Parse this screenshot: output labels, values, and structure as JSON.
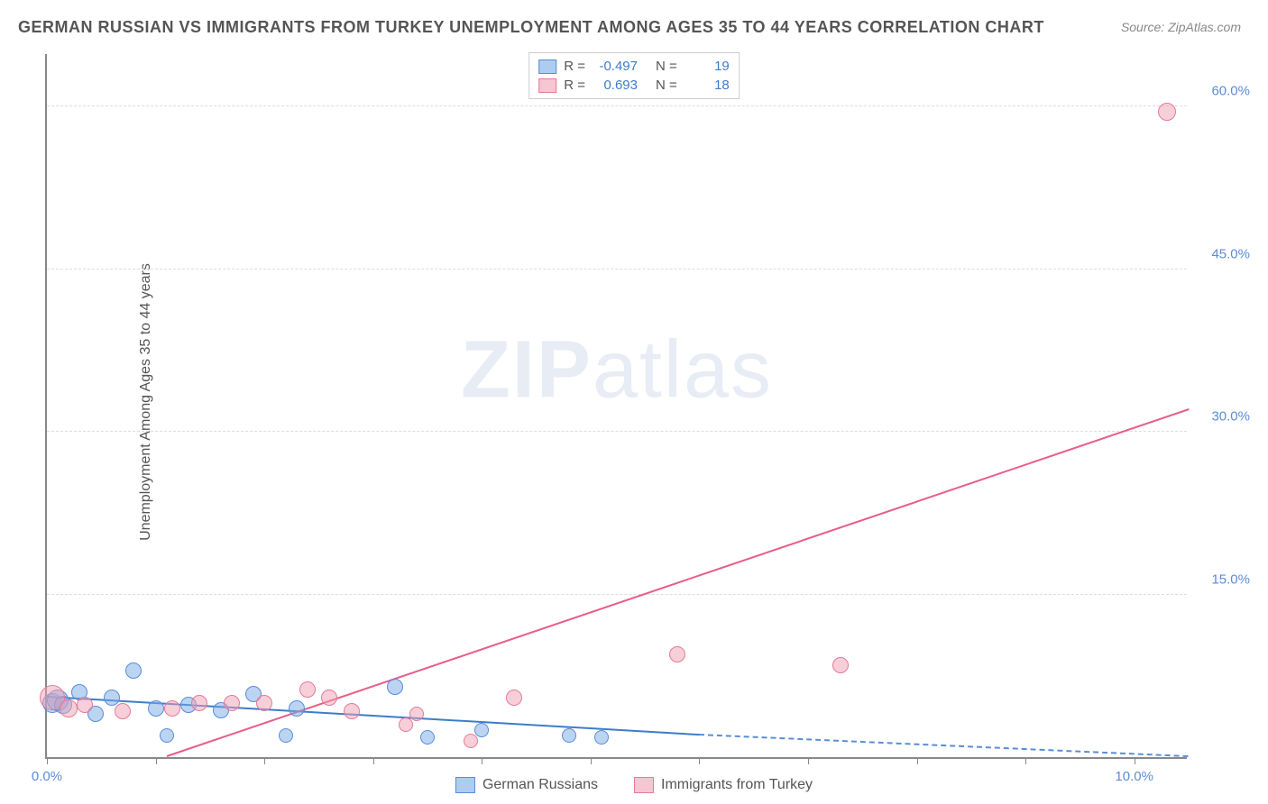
{
  "title": "GERMAN RUSSIAN VS IMMIGRANTS FROM TURKEY UNEMPLOYMENT AMONG AGES 35 TO 44 YEARS CORRELATION CHART",
  "source": "Source: ZipAtlas.com",
  "ylabel": "Unemployment Among Ages 35 to 44 years",
  "watermark_a": "ZIP",
  "watermark_b": "atlas",
  "chart": {
    "type": "scatter",
    "xlim": [
      0,
      10.5
    ],
    "ylim": [
      0,
      65
    ],
    "xticks": [
      0.0,
      1.0,
      2.0,
      3.0,
      4.0,
      5.0,
      6.0,
      7.0,
      8.0,
      9.0,
      10.0
    ],
    "xtick_labels": [
      "0.0%",
      "",
      "",
      "",
      "",
      "",
      "",
      "",
      "",
      "",
      "10.0%"
    ],
    "yticks": [
      15.0,
      30.0,
      45.0,
      60.0
    ],
    "ytick_labels": [
      "15.0%",
      "30.0%",
      "45.0%",
      "60.0%"
    ],
    "background_color": "#ffffff",
    "grid_color": "#dddddd",
    "axis_color": "#888888",
    "label_color": "#5b8dd6",
    "series": [
      {
        "name": "German Russians",
        "color_fill": "rgba(120,170,230,0.5)",
        "color_stroke": "#5b8dd6",
        "marker_radius_base": 9,
        "points": [
          {
            "x": 0.05,
            "y": 5.0,
            "r": 11
          },
          {
            "x": 0.1,
            "y": 5.2,
            "r": 12
          },
          {
            "x": 0.15,
            "y": 4.8,
            "r": 10
          },
          {
            "x": 0.3,
            "y": 6.0,
            "r": 9
          },
          {
            "x": 0.45,
            "y": 4.0,
            "r": 9
          },
          {
            "x": 0.6,
            "y": 5.5,
            "r": 9
          },
          {
            "x": 0.8,
            "y": 8.0,
            "r": 9
          },
          {
            "x": 1.0,
            "y": 4.5,
            "r": 9
          },
          {
            "x": 1.1,
            "y": 2.0,
            "r": 8
          },
          {
            "x": 1.3,
            "y": 4.8,
            "r": 9
          },
          {
            "x": 1.6,
            "y": 4.3,
            "r": 9
          },
          {
            "x": 1.9,
            "y": 5.8,
            "r": 9
          },
          {
            "x": 2.2,
            "y": 2.0,
            "r": 8
          },
          {
            "x": 2.3,
            "y": 4.5,
            "r": 9
          },
          {
            "x": 3.2,
            "y": 6.5,
            "r": 9
          },
          {
            "x": 3.5,
            "y": 1.8,
            "r": 8
          },
          {
            "x": 4.0,
            "y": 2.5,
            "r": 8
          },
          {
            "x": 4.8,
            "y": 2.0,
            "r": 8
          },
          {
            "x": 5.1,
            "y": 1.8,
            "r": 8
          }
        ],
        "trend": {
          "x1": 0,
          "y1": 5.5,
          "x2": 6.0,
          "y2": 2.0,
          "x3": 10.5,
          "y3": -0.5,
          "color": "#3d7cc9",
          "width": 2
        }
      },
      {
        "name": "Immigrants from Turkey",
        "color_fill": "rgba(240,160,180,0.5)",
        "color_stroke": "#e57a9a",
        "marker_radius_base": 9,
        "points": [
          {
            "x": 0.05,
            "y": 5.5,
            "r": 14
          },
          {
            "x": 0.2,
            "y": 4.5,
            "r": 10
          },
          {
            "x": 0.35,
            "y": 4.8,
            "r": 9
          },
          {
            "x": 0.7,
            "y": 4.2,
            "r": 9
          },
          {
            "x": 1.15,
            "y": 4.5,
            "r": 9
          },
          {
            "x": 1.4,
            "y": 5.0,
            "r": 9
          },
          {
            "x": 1.7,
            "y": 5.0,
            "r": 9
          },
          {
            "x": 2.0,
            "y": 5.0,
            "r": 9
          },
          {
            "x": 2.4,
            "y": 6.2,
            "r": 9
          },
          {
            "x": 2.6,
            "y": 5.5,
            "r": 9
          },
          {
            "x": 2.8,
            "y": 4.2,
            "r": 9
          },
          {
            "x": 3.3,
            "y": 3.0,
            "r": 8
          },
          {
            "x": 3.4,
            "y": 4.0,
            "r": 8
          },
          {
            "x": 3.9,
            "y": 1.5,
            "r": 8
          },
          {
            "x": 4.3,
            "y": 5.5,
            "r": 9
          },
          {
            "x": 5.8,
            "y": 9.5,
            "r": 9
          },
          {
            "x": 7.3,
            "y": 8.5,
            "r": 9
          },
          {
            "x": 10.3,
            "y": 59.5,
            "r": 10
          }
        ],
        "trend": {
          "x1": 1.1,
          "y1": 0,
          "x2": 10.5,
          "y2": 32.0,
          "color": "#e85d88",
          "width": 2
        }
      }
    ]
  },
  "stats": [
    {
      "swatch": "blue",
      "r_label": "R =",
      "r": "-0.497",
      "n_label": "N =",
      "n": "19"
    },
    {
      "swatch": "pink",
      "r_label": "R =",
      "r": "0.693",
      "n_label": "N =",
      "n": "18"
    }
  ],
  "legend": [
    {
      "swatch": "blue",
      "label": "German Russians"
    },
    {
      "swatch": "pink",
      "label": "Immigrants from Turkey"
    }
  ]
}
